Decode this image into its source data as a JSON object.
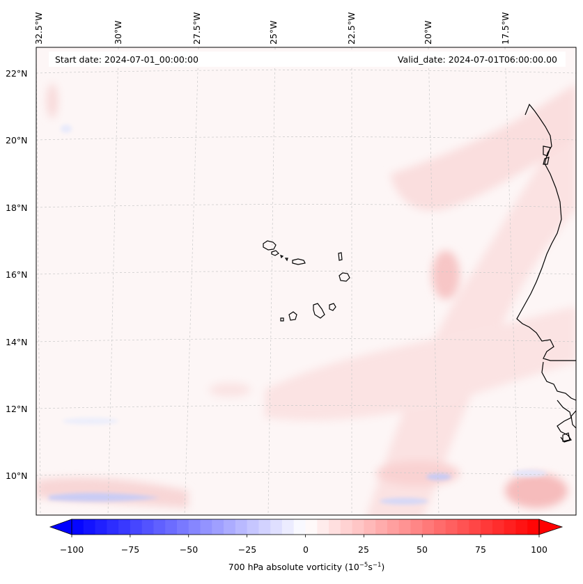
{
  "map": {
    "start_date": "Start date: 2024-07-01_00:00:00",
    "valid_date": "Valid_date: 2024-07-01T06:00:00.00",
    "longitude_labels": [
      "32.5°W",
      "30°W",
      "27.5°W",
      "25°W",
      "22.5°W",
      "20°W",
      "17.5°W"
    ],
    "latitude_labels": [
      "22°N",
      "20°N",
      "18°N",
      "16°N",
      "14°N",
      "12°N",
      "10°N"
    ],
    "region": "Cabo Verde islands and West African coast",
    "field": "700 hPa absolute vorticity"
  },
  "colorbar": {
    "label_prefix": "700 hPa absolute vorticity (10",
    "label_exp1": "−5",
    "label_mid": "s",
    "label_exp2": "−1",
    "label_suffix": ")",
    "ticks": [
      "−100",
      "−75",
      "−50",
      "−25",
      "0",
      "25",
      "50",
      "75",
      "100"
    ],
    "range": [
      -100,
      100
    ],
    "extend": "both",
    "colors": {
      "min": "#0000ff",
      "mid": "#ffffff",
      "max": "#ff0000"
    }
  }
}
